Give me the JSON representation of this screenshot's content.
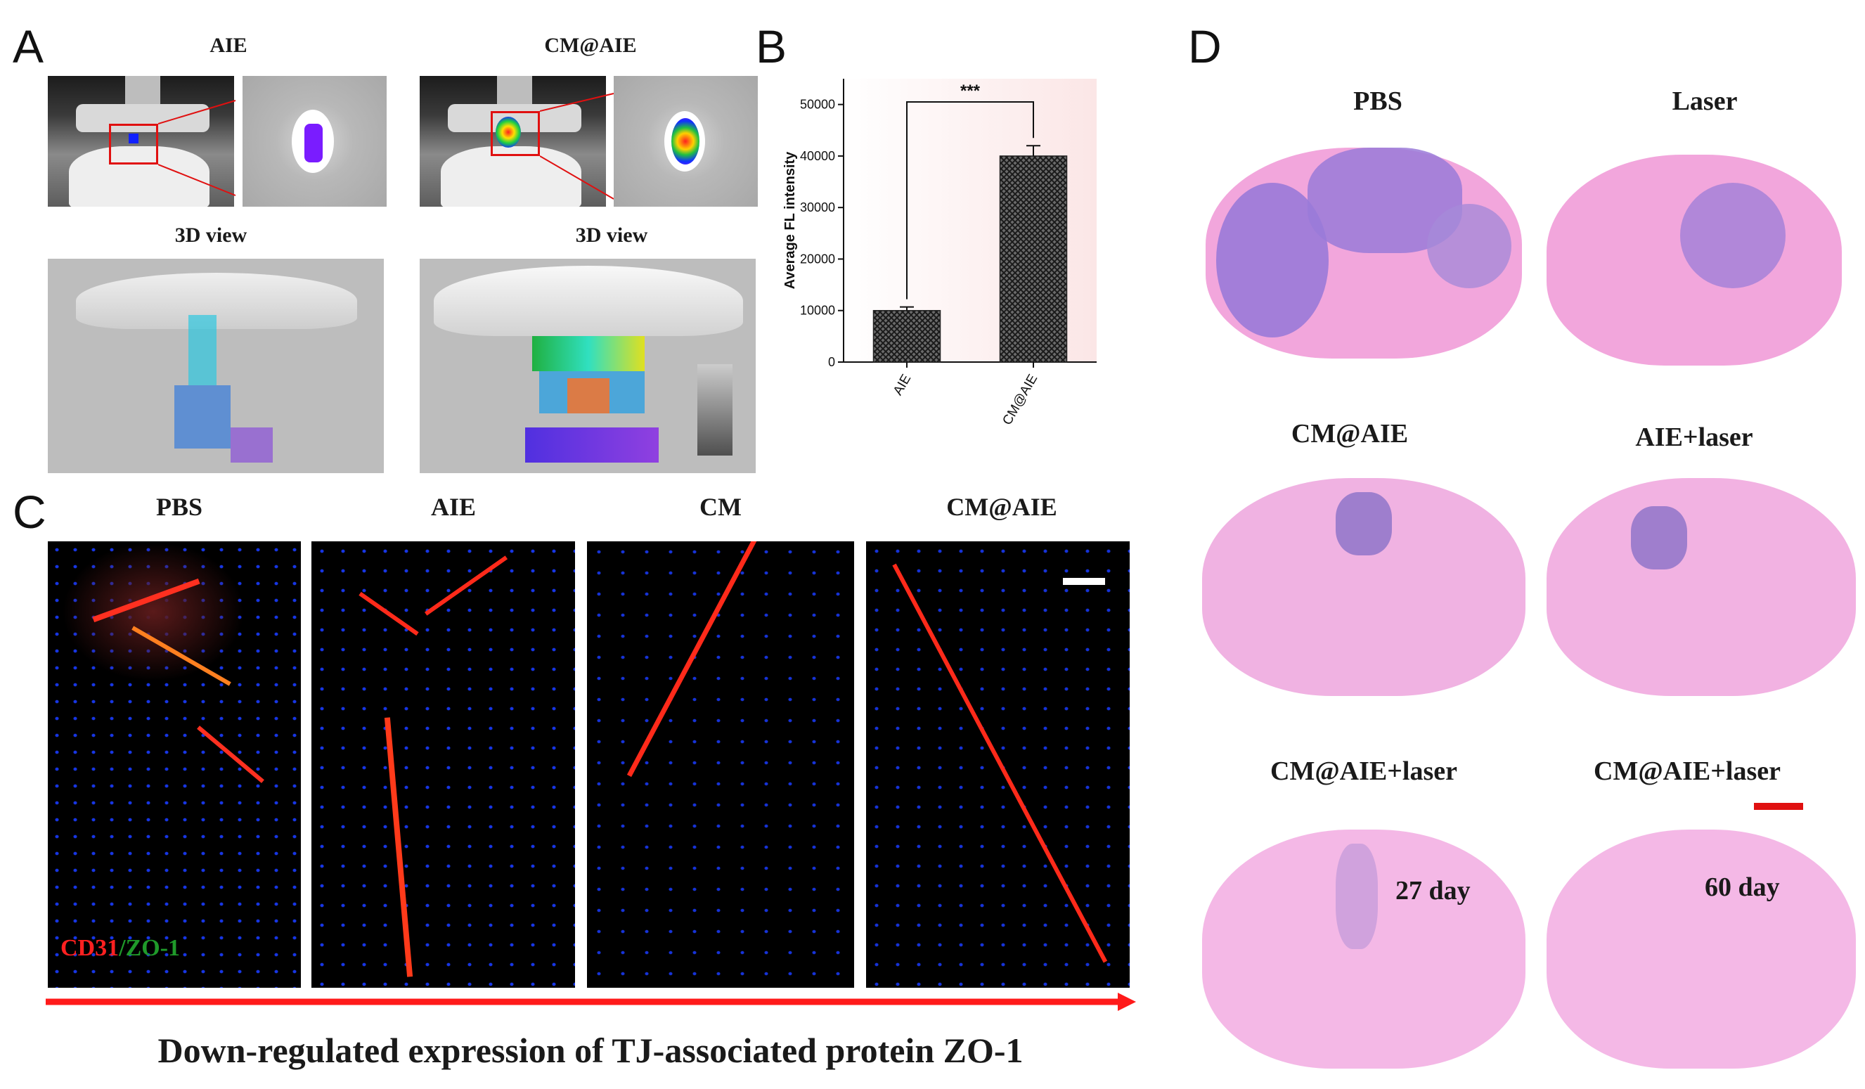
{
  "panels": {
    "A": {
      "letter": "A",
      "left_title": "AIE",
      "right_title": "CM@AIE",
      "left_3d_title": "3D view",
      "right_3d_title": "3D view"
    },
    "B": {
      "letter": "B",
      "significance": "***"
    },
    "C": {
      "letter": "C",
      "columns": [
        "PBS",
        "AIE",
        "CM",
        "CM@AIE"
      ],
      "stain_label_red": "CD31",
      "stain_label_sep": "/",
      "stain_label_green": "ZO-1",
      "caption": "Down-regulated expression of TJ-associated protein ZO-1"
    },
    "D": {
      "letter": "D",
      "labels": [
        "PBS",
        "Laser",
        "CM@AIE",
        "AIE+laser",
        "CM@AIE+laser",
        "CM@AIE+laser"
      ],
      "day_left": "27 day",
      "day_right": "60 day"
    }
  },
  "colors": {
    "red_accent": "#e01010",
    "he_pink": "#f0a8d8",
    "he_purple": "#9a7ad8",
    "fluor_red": "#ff2a1a",
    "nuclei_blue": "#1a3cff",
    "stain_green": "#1f9a2a"
  },
  "chart_data": {
    "type": "bar",
    "categories": [
      "AIE",
      "CM@AIE"
    ],
    "values": [
      10000,
      40000
    ],
    "errors": [
      700,
      2000
    ],
    "ylabel": "Average FL intensity",
    "ylim": [
      0,
      55000
    ],
    "yticks": [
      0,
      10000,
      20000,
      30000,
      40000,
      50000
    ],
    "significance": "***",
    "grid": false
  }
}
